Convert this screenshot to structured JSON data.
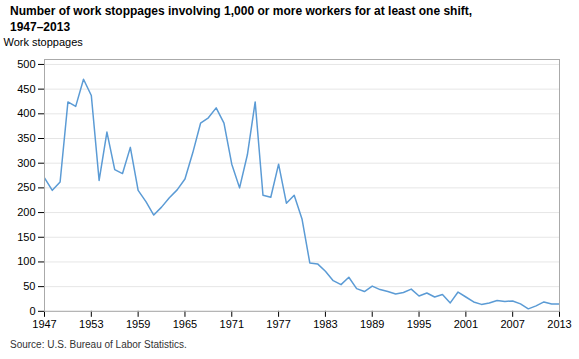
{
  "chart_data": {
    "type": "line",
    "title": "Number of work stoppages involving 1,000 or more workers for at least one shift,\n1947–2013",
    "ylabel": "Work stoppages",
    "source": "Source: U.S. Bureau of Labor Statistics.",
    "color": "#5b9bd5",
    "x": [
      1947,
      1948,
      1949,
      1950,
      1951,
      1952,
      1953,
      1954,
      1955,
      1956,
      1957,
      1958,
      1959,
      1960,
      1961,
      1962,
      1963,
      1964,
      1965,
      1966,
      1967,
      1968,
      1969,
      1970,
      1971,
      1972,
      1973,
      1974,
      1975,
      1976,
      1977,
      1978,
      1979,
      1980,
      1981,
      1982,
      1983,
      1984,
      1985,
      1986,
      1987,
      1988,
      1989,
      1990,
      1991,
      1992,
      1993,
      1994,
      1995,
      1996,
      1997,
      1998,
      1999,
      2000,
      2001,
      2002,
      2003,
      2004,
      2005,
      2006,
      2007,
      2008,
      2009,
      2010,
      2011,
      2012,
      2013
    ],
    "values": [
      270,
      245,
      262,
      424,
      415,
      470,
      437,
      265,
      363,
      287,
      279,
      332,
      245,
      222,
      195,
      211,
      230,
      246,
      268,
      321,
      381,
      392,
      412,
      381,
      298,
      250,
      317,
      424,
      235,
      231,
      298,
      219,
      235,
      187,
      98,
      96,
      81,
      62,
      54,
      69,
      46,
      40,
      51,
      44,
      40,
      35,
      38,
      45,
      31,
      37,
      29,
      34,
      17,
      39,
      29,
      19,
      14,
      17,
      22,
      20,
      21,
      15,
      5,
      11,
      19,
      15,
      15
    ],
    "xlim": [
      1947,
      2013
    ],
    "xticks": [
      1947,
      1953,
      1959,
      1965,
      1971,
      1977,
      1983,
      1989,
      1995,
      2001,
      2007,
      2013
    ],
    "ylim": [
      0,
      510
    ],
    "yticks": [
      0,
      50,
      100,
      150,
      200,
      250,
      300,
      350,
      400,
      450,
      500
    ],
    "grid": "y"
  }
}
